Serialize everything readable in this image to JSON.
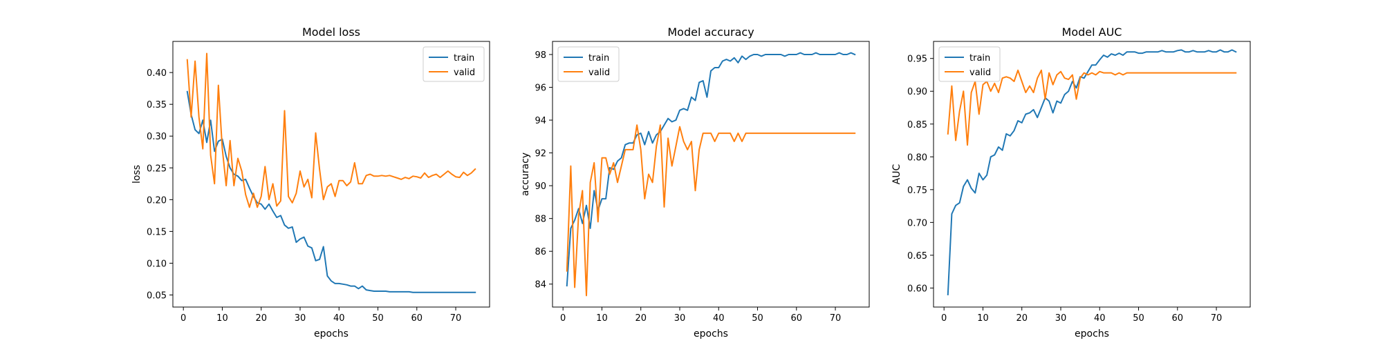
{
  "colors": {
    "train": "#1f77b4",
    "valid": "#ff7f0e"
  },
  "chart_data": [
    {
      "type": "line",
      "title": "Model loss",
      "xlabel": "epochs",
      "ylabel": "loss",
      "xlim": [
        -2.7,
        78.7
      ],
      "ylim": [
        0.031,
        0.449
      ],
      "xticks": [
        0,
        10,
        20,
        30,
        40,
        50,
        60,
        70
      ],
      "yticks": [
        0.05,
        0.1,
        0.15,
        0.2,
        0.25,
        0.3,
        0.35,
        0.4
      ],
      "ytick_decimals": 2,
      "legend_position": "upper-right",
      "x": [
        1,
        2,
        3,
        4,
        5,
        6,
        7,
        8,
        9,
        10,
        11,
        12,
        13,
        14,
        15,
        16,
        17,
        18,
        19,
        20,
        21,
        22,
        23,
        24,
        25,
        26,
        27,
        28,
        29,
        30,
        31,
        32,
        33,
        34,
        35,
        36,
        37,
        38,
        39,
        40,
        41,
        42,
        43,
        44,
        45,
        46,
        47,
        48,
        49,
        50,
        51,
        52,
        53,
        54,
        55,
        56,
        57,
        58,
        59,
        60,
        61,
        62,
        63,
        64,
        65,
        66,
        67,
        68,
        69,
        70,
        71,
        72,
        73,
        74,
        75
      ],
      "series": [
        {
          "name": "train",
          "color": "#1f77b4",
          "values": [
            0.37,
            0.334,
            0.31,
            0.304,
            0.325,
            0.29,
            0.325,
            0.276,
            0.292,
            0.295,
            0.268,
            0.25,
            0.24,
            0.237,
            0.23,
            0.232,
            0.218,
            0.205,
            0.195,
            0.193,
            0.185,
            0.193,
            0.182,
            0.172,
            0.175,
            0.16,
            0.155,
            0.157,
            0.133,
            0.138,
            0.141,
            0.127,
            0.124,
            0.104,
            0.106,
            0.126,
            0.08,
            0.072,
            0.068,
            0.068,
            0.067,
            0.066,
            0.064,
            0.064,
            0.06,
            0.064,
            0.058,
            0.057,
            0.056,
            0.056,
            0.056,
            0.056,
            0.055,
            0.055,
            0.055,
            0.055,
            0.055,
            0.055,
            0.054,
            0.054,
            0.054,
            0.054,
            0.054,
            0.054,
            0.054,
            0.054,
            0.054,
            0.054,
            0.054,
            0.054,
            0.054,
            0.054,
            0.054,
            0.054,
            0.054
          ]
        },
        {
          "name": "valid",
          "color": "#ff7f0e",
          "values": [
            0.42,
            0.33,
            0.418,
            0.33,
            0.28,
            0.43,
            0.27,
            0.225,
            0.38,
            0.28,
            0.222,
            0.293,
            0.222,
            0.265,
            0.245,
            0.208,
            0.188,
            0.21,
            0.188,
            0.205,
            0.252,
            0.2,
            0.225,
            0.19,
            0.198,
            0.34,
            0.205,
            0.195,
            0.21,
            0.245,
            0.22,
            0.232,
            0.203,
            0.305,
            0.248,
            0.2,
            0.22,
            0.225,
            0.205,
            0.23,
            0.23,
            0.222,
            0.228,
            0.258,
            0.225,
            0.225,
            0.238,
            0.24,
            0.237,
            0.237,
            0.238,
            0.237,
            0.238,
            0.236,
            0.234,
            0.232,
            0.235,
            0.233,
            0.237,
            0.236,
            0.234,
            0.242,
            0.235,
            0.238,
            0.24,
            0.235,
            0.24,
            0.245,
            0.24,
            0.236,
            0.235,
            0.243,
            0.238,
            0.242,
            0.248
          ]
        }
      ]
    },
    {
      "type": "line",
      "title": "Model accuracy",
      "xlabel": "epochs",
      "ylabel": "accuracy",
      "xlim": [
        -2.7,
        78.7
      ],
      "ylim": [
        82.6,
        98.8
      ],
      "xticks": [
        0,
        10,
        20,
        30,
        40,
        50,
        60,
        70
      ],
      "yticks": [
        84,
        86,
        88,
        90,
        92,
        94,
        96,
        98
      ],
      "ytick_decimals": 0,
      "legend_position": "upper-left",
      "x": [
        1,
        2,
        3,
        4,
        5,
        6,
        7,
        8,
        9,
        10,
        11,
        12,
        13,
        14,
        15,
        16,
        17,
        18,
        19,
        20,
        21,
        22,
        23,
        24,
        25,
        26,
        27,
        28,
        29,
        30,
        31,
        32,
        33,
        34,
        35,
        36,
        37,
        38,
        39,
        40,
        41,
        42,
        43,
        44,
        45,
        46,
        47,
        48,
        49,
        50,
        51,
        52,
        53,
        54,
        55,
        56,
        57,
        58,
        59,
        60,
        61,
        62,
        63,
        64,
        65,
        66,
        67,
        68,
        69,
        70,
        71,
        72,
        73,
        74,
        75
      ],
      "series": [
        {
          "name": "train",
          "color": "#1f77b4",
          "values": [
            83.9,
            87.4,
            87.9,
            88.6,
            87.7,
            88.8,
            87.4,
            89.7,
            88.5,
            89.2,
            89.2,
            91.1,
            91.0,
            91.5,
            91.7,
            92.5,
            92.6,
            92.6,
            93.1,
            93.2,
            92.5,
            93.3,
            92.6,
            93.1,
            93.3,
            93.7,
            94.1,
            93.9,
            94.0,
            94.6,
            94.7,
            94.6,
            95.4,
            95.2,
            96.3,
            96.4,
            95.4,
            97.0,
            97.2,
            97.2,
            97.6,
            97.7,
            97.6,
            97.8,
            97.5,
            97.9,
            97.7,
            97.9,
            98.0,
            98.0,
            97.9,
            98.0,
            98.0,
            98.0,
            98.0,
            98.0,
            97.9,
            98.0,
            98.0,
            98.0,
            98.1,
            98.0,
            98.0,
            98.0,
            98.1,
            98.0,
            98.0,
            98.0,
            98.0,
            98.0,
            98.1,
            98.0,
            98.0,
            98.1,
            98.0
          ]
        },
        {
          "name": "valid",
          "color": "#ff7f0e",
          "values": [
            84.8,
            91.2,
            83.8,
            88.2,
            89.7,
            83.3,
            90.2,
            91.4,
            87.8,
            91.7,
            91.7,
            90.7,
            91.4,
            90.2,
            91.2,
            92.2,
            92.2,
            92.2,
            93.7,
            92.2,
            89.2,
            90.7,
            90.2,
            92.4,
            93.7,
            88.7,
            92.9,
            91.2,
            92.4,
            93.6,
            92.7,
            92.2,
            92.7,
            89.7,
            92.2,
            93.2,
            93.2,
            93.2,
            92.7,
            93.2,
            93.2,
            93.2,
            93.2,
            92.7,
            93.2,
            92.7,
            93.2,
            93.2,
            93.2,
            93.2,
            93.2,
            93.2,
            93.2,
            93.2,
            93.2,
            93.2,
            93.2,
            93.2,
            93.2,
            93.2,
            93.2,
            93.2,
            93.2,
            93.2,
            93.2,
            93.2,
            93.2,
            93.2,
            93.2,
            93.2,
            93.2,
            93.2,
            93.2,
            93.2,
            93.2
          ]
        }
      ]
    },
    {
      "type": "line",
      "title": "Model AUC",
      "xlabel": "epochs",
      "ylabel": "AUC",
      "xlim": [
        -2.7,
        78.7
      ],
      "ylim": [
        0.571,
        0.976
      ],
      "xticks": [
        0,
        10,
        20,
        30,
        40,
        50,
        60,
        70
      ],
      "yticks": [
        0.6,
        0.65,
        0.7,
        0.75,
        0.8,
        0.85,
        0.9,
        0.95
      ],
      "ytick_decimals": 2,
      "legend_position": "upper-left",
      "x": [
        1,
        2,
        3,
        4,
        5,
        6,
        7,
        8,
        9,
        10,
        11,
        12,
        13,
        14,
        15,
        16,
        17,
        18,
        19,
        20,
        21,
        22,
        23,
        24,
        25,
        26,
        27,
        28,
        29,
        30,
        31,
        32,
        33,
        34,
        35,
        36,
        37,
        38,
        39,
        40,
        41,
        42,
        43,
        44,
        45,
        46,
        47,
        48,
        49,
        50,
        51,
        52,
        53,
        54,
        55,
        56,
        57,
        58,
        59,
        60,
        61,
        62,
        63,
        64,
        65,
        66,
        67,
        68,
        69,
        70,
        71,
        72,
        73,
        74,
        75
      ],
      "series": [
        {
          "name": "train",
          "color": "#1f77b4",
          "values": [
            0.59,
            0.713,
            0.726,
            0.73,
            0.755,
            0.765,
            0.752,
            0.745,
            0.775,
            0.765,
            0.772,
            0.8,
            0.803,
            0.815,
            0.81,
            0.835,
            0.832,
            0.84,
            0.855,
            0.852,
            0.865,
            0.867,
            0.872,
            0.86,
            0.875,
            0.89,
            0.885,
            0.867,
            0.885,
            0.882,
            0.895,
            0.9,
            0.915,
            0.905,
            0.922,
            0.92,
            0.93,
            0.94,
            0.94,
            0.948,
            0.955,
            0.952,
            0.957,
            0.955,
            0.958,
            0.955,
            0.96,
            0.96,
            0.96,
            0.958,
            0.958,
            0.96,
            0.96,
            0.96,
            0.96,
            0.962,
            0.96,
            0.96,
            0.96,
            0.962,
            0.963,
            0.96,
            0.96,
            0.962,
            0.96,
            0.96,
            0.96,
            0.962,
            0.96,
            0.96,
            0.963,
            0.96,
            0.96,
            0.963,
            0.96
          ]
        },
        {
          "name": "valid",
          "color": "#ff7f0e",
          "values": [
            0.835,
            0.908,
            0.825,
            0.87,
            0.9,
            0.818,
            0.898,
            0.915,
            0.865,
            0.91,
            0.915,
            0.9,
            0.912,
            0.898,
            0.92,
            0.922,
            0.92,
            0.915,
            0.932,
            0.915,
            0.898,
            0.908,
            0.898,
            0.92,
            0.932,
            0.888,
            0.928,
            0.91,
            0.925,
            0.93,
            0.92,
            0.918,
            0.925,
            0.888,
            0.92,
            0.928,
            0.925,
            0.928,
            0.925,
            0.93,
            0.928,
            0.928,
            0.928,
            0.925,
            0.928,
            0.925,
            0.928,
            0.928,
            0.928,
            0.928,
            0.928,
            0.928,
            0.928,
            0.928,
            0.928,
            0.928,
            0.928,
            0.928,
            0.928,
            0.928,
            0.928,
            0.928,
            0.928,
            0.928,
            0.928,
            0.928,
            0.928,
            0.928,
            0.928,
            0.928,
            0.928,
            0.928,
            0.928,
            0.928,
            0.928
          ]
        }
      ]
    }
  ]
}
